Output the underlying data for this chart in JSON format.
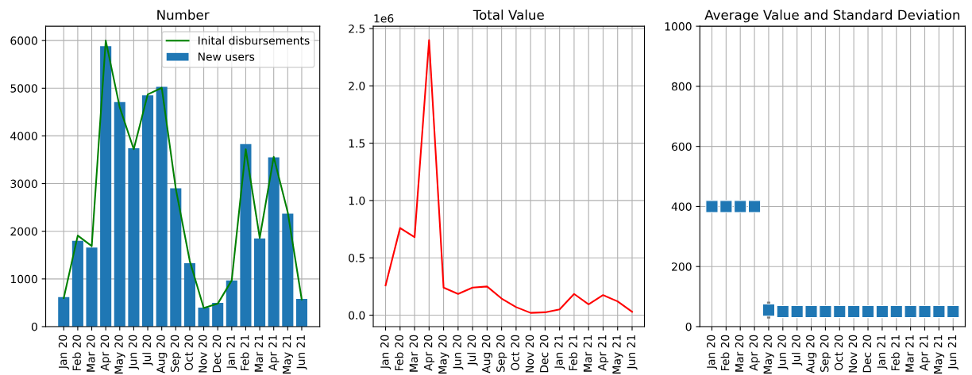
{
  "chart_data": [
    {
      "type": "bar",
      "title": "Number",
      "categories": [
        "Jan 20",
        "Feb 20",
        "Mar 20",
        "Apr 20",
        "May 20",
        "Jun 20",
        "Jul 20",
        "Aug 20",
        "Sep 20",
        "Oct 20",
        "Nov 20",
        "Dec 20",
        "Jan 21",
        "Feb 21",
        "Mar 21",
        "Apr 21",
        "May 21",
        "Jun 21"
      ],
      "series": [
        {
          "name": "Inital disbursements",
          "type": "line",
          "color": "#008000",
          "values": [
            600,
            1910,
            1690,
            6000,
            4600,
            3720,
            4870,
            5010,
            2900,
            1380,
            390,
            480,
            970,
            3720,
            1860,
            3560,
            2400,
            570
          ]
        },
        {
          "name": "New users",
          "type": "bar",
          "color": "#1f77b4",
          "values": [
            620,
            1800,
            1660,
            5880,
            4710,
            3740,
            4850,
            5030,
            2900,
            1330,
            400,
            500,
            970,
            3830,
            1850,
            3550,
            2370,
            580
          ]
        }
      ],
      "ylim": [
        0,
        6300
      ],
      "yticks": [
        0,
        1000,
        2000,
        3000,
        4000,
        5000,
        6000
      ],
      "grid": true,
      "legend": "top right"
    },
    {
      "type": "line",
      "title": "Total Value",
      "categories": [
        "Jan 20",
        "Feb 20",
        "Mar 20",
        "Apr 20",
        "May 20",
        "Jun 20",
        "Jul 20",
        "Aug 20",
        "Sep 20",
        "Oct 20",
        "Nov 20",
        "Dec 20",
        "Jan 21",
        "Feb 21",
        "Mar 21",
        "Apr 21",
        "May 21",
        "Jun 21"
      ],
      "series": [
        {
          "color": "#ff0000",
          "values": [
            0.26,
            0.76,
            0.68,
            2.4,
            0.24,
            0.185,
            0.24,
            0.25,
            0.145,
            0.07,
            0.02,
            0.025,
            0.05,
            0.185,
            0.095,
            0.175,
            0.12,
            0.03
          ]
        }
      ],
      "ylim": [
        -0.1,
        2.52
      ],
      "yticks": [
        {
          "value": 0,
          "label": "0.0"
        },
        0.5,
        {
          "value": 1,
          "label": "1.0"
        },
        1.5,
        {
          "value": 2,
          "label": "2.0"
        },
        2.5
      ],
      "annotations": [
        "1e6"
      ],
      "grid": true,
      "legend": false
    },
    {
      "type": "scatter",
      "title": "Average Value and Standard Deviation",
      "categories": [
        "Jan 20",
        "Feb 20",
        "Mar 20",
        "Apr 20",
        "May 20",
        "Jun 20",
        "Jul 20",
        "Aug 20",
        "Sep 20",
        "Oct 20",
        "Nov 20",
        "Dec 20",
        "Jan 21",
        "Feb 21",
        "Mar 21",
        "Apr 21",
        "May 21",
        "Jun 21"
      ],
      "series": [
        {
          "color": "#1f77b4",
          "values": [
            400,
            400,
            400,
            400,
            55,
            50,
            50,
            50,
            50,
            50,
            50,
            50,
            50,
            50,
            50,
            50,
            50,
            50
          ],
          "errors": [
            null,
            null,
            null,
            null,
            28,
            null,
            null,
            null,
            null,
            null,
            null,
            null,
            null,
            null,
            null,
            null,
            null,
            null
          ]
        }
      ],
      "marker": "square",
      "ylim": [
        0,
        1000
      ],
      "yticks": [
        0,
        200,
        400,
        600,
        800,
        1000
      ],
      "grid": true,
      "legend": false
    }
  ]
}
